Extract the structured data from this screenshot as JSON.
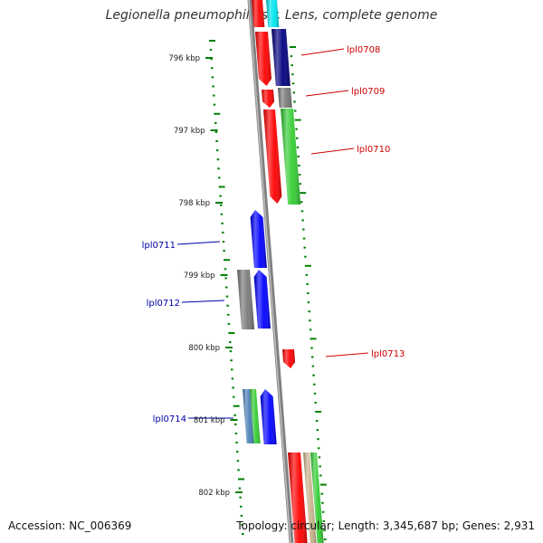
{
  "title": "Legionella pneumophila str. Lens, complete genome",
  "accession": "Accession: NC_006369",
  "summary": "Topology: circular; Length: 3,345,687 bp; Genes: 2,931",
  "colors": {
    "backbone": "#808080",
    "tick": "#008000",
    "forward_label": "#cc0000",
    "reverse_label": "#0000aa",
    "red": "#ff0000",
    "navy": "#000080",
    "blue": "#0000ff",
    "green": "#33cc33",
    "gray": "#7a7a7a",
    "cyan": "#00e5ee",
    "tan": "#c8b48c",
    "steel": "#4a7fb5"
  },
  "scale_labels": [
    "796 kbp",
    "797 kbp",
    "798 kbp",
    "799 kbp",
    "800 kbp",
    "801 kbp",
    "802 kbp"
  ],
  "gene_labels": [
    {
      "text": "lpl0708",
      "strand": "forward"
    },
    {
      "text": "lpl0709",
      "strand": "forward"
    },
    {
      "text": "lpl0710",
      "strand": "forward"
    },
    {
      "text": "lpl0711",
      "strand": "reverse"
    },
    {
      "text": "lpl0712",
      "strand": "reverse"
    },
    {
      "text": "lpl0713",
      "strand": "forward"
    },
    {
      "text": "lpl0714",
      "strand": "reverse"
    }
  ]
}
